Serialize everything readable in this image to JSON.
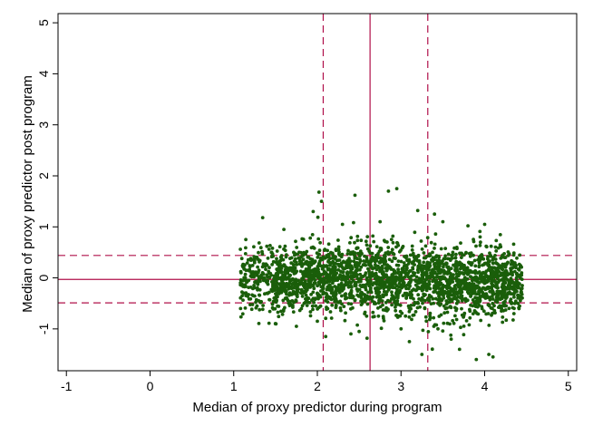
{
  "chart_data": {
    "type": "scatter",
    "title": "",
    "xlabel": "Median of proxy predictor during program",
    "ylabel": "Median of proxy predictor post program",
    "xlim": [
      -1.1,
      5.1
    ],
    "ylim": [
      -1.82,
      5.18
    ],
    "xticks": [
      -1,
      0,
      1,
      2,
      3,
      4,
      5
    ],
    "yticks": [
      -1,
      0,
      1,
      2,
      3,
      4,
      5
    ],
    "grid": false,
    "legend": "none",
    "point_color": "#1a5e0a",
    "line_color": "#b0104a",
    "reference_lines": {
      "vertical": [
        {
          "x": 2.63,
          "style": "solid"
        },
        {
          "x": 2.07,
          "style": "dashed"
        },
        {
          "x": 3.32,
          "style": "dashed"
        }
      ],
      "horizontal": [
        {
          "y": -0.03,
          "style": "solid"
        },
        {
          "y": 0.44,
          "style": "dashed"
        },
        {
          "y": -0.49,
          "style": "dashed"
        }
      ]
    },
    "cloud": {
      "n": 2600,
      "x_range": [
        1.08,
        4.45
      ],
      "y_center": -0.03,
      "y_sd": 0.34,
      "y_range": [
        -1.65,
        1.75
      ]
    },
    "points": [
      {
        "x": 1.08,
        "y": 0.56
      },
      {
        "x": 1.1,
        "y": -0.05
      },
      {
        "x": 1.12,
        "y": -0.3
      },
      {
        "x": 1.25,
        "y": 0.3
      },
      {
        "x": 1.3,
        "y": -0.45
      },
      {
        "x": 1.45,
        "y": 0.5
      },
      {
        "x": 1.5,
        "y": -0.9
      },
      {
        "x": 1.6,
        "y": 0.95
      },
      {
        "x": 1.75,
        "y": -0.95
      },
      {
        "x": 1.95,
        "y": 1.3
      },
      {
        "x": 2.0,
        "y": -0.85
      },
      {
        "x": 2.02,
        "y": 1.68
      },
      {
        "x": 2.05,
        "y": 1.5
      },
      {
        "x": 2.1,
        "y": -1.15
      },
      {
        "x": 2.3,
        "y": 1.05
      },
      {
        "x": 2.45,
        "y": 1.62
      },
      {
        "x": 2.5,
        "y": -1.05
      },
      {
        "x": 2.75,
        "y": 1.1
      },
      {
        "x": 2.85,
        "y": 1.7
      },
      {
        "x": 2.95,
        "y": 1.75
      },
      {
        "x": 3.0,
        "y": -1.0
      },
      {
        "x": 3.1,
        "y": -1.25
      },
      {
        "x": 3.2,
        "y": 1.32
      },
      {
        "x": 3.25,
        "y": -1.5
      },
      {
        "x": 3.4,
        "y": 1.25
      },
      {
        "x": 3.5,
        "y": 1.1
      },
      {
        "x": 3.6,
        "y": -1.2
      },
      {
        "x": 3.7,
        "y": -1.4
      },
      {
        "x": 3.8,
        "y": 1.02
      },
      {
        "x": 3.9,
        "y": -1.6
      },
      {
        "x": 3.95,
        "y": 0.7
      },
      {
        "x": 4.0,
        "y": 1.05
      },
      {
        "x": 4.05,
        "y": -1.5
      },
      {
        "x": 4.1,
        "y": -1.55
      },
      {
        "x": 4.2,
        "y": -0.65
      },
      {
        "x": 4.25,
        "y": 0.4
      },
      {
        "x": 4.35,
        "y": -0.7
      },
      {
        "x": 4.4,
        "y": 0.05
      },
      {
        "x": 4.45,
        "y": -0.15
      }
    ]
  }
}
